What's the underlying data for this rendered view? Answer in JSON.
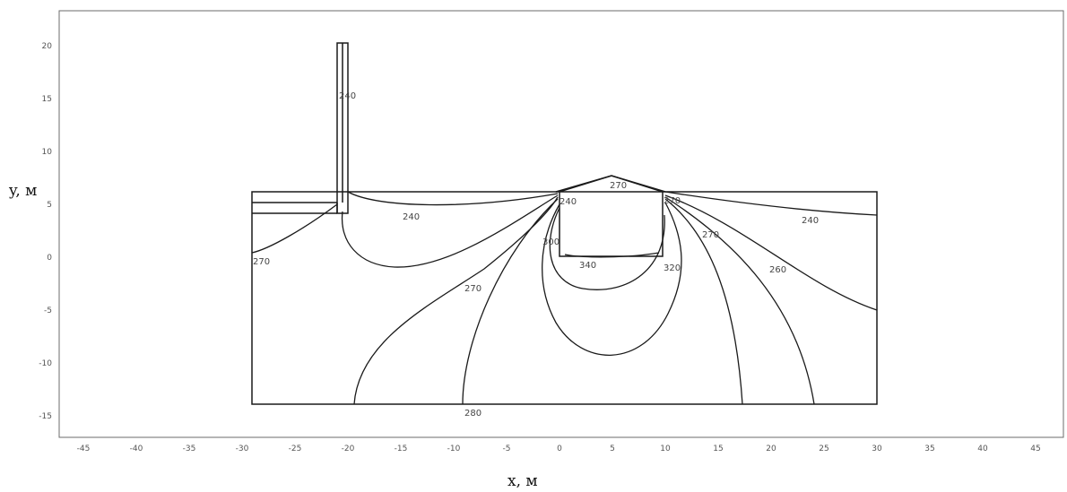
{
  "axes": {
    "xlabel": "x, м",
    "ylabel": "y, м",
    "x_ticks": [
      "-45",
      "-40",
      "-35",
      "-30",
      "-25",
      "-20",
      "-15",
      "-10",
      "-5",
      "0",
      "5",
      "10",
      "15",
      "20",
      "25",
      "30",
      "35",
      "40",
      "45"
    ],
    "y_ticks": [
      "20",
      "15",
      "10",
      "5",
      "0",
      "-5",
      "-10",
      "-15"
    ]
  },
  "contour_labels": [
    "240",
    "240",
    "240",
    "240",
    "270",
    "270",
    "270",
    "270",
    "270",
    "280",
    "300",
    "340",
    "320",
    "260"
  ]
}
